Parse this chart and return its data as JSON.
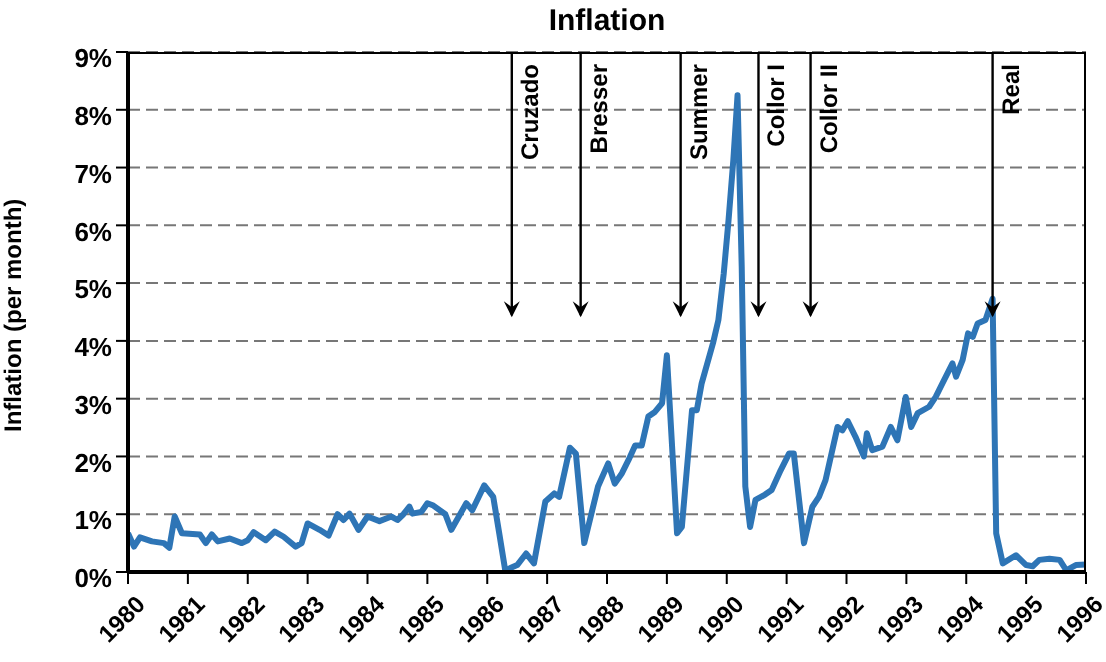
{
  "chart_data": {
    "type": "line",
    "title": "Inflation",
    "ylabel": "Inflation (per month)",
    "xlim": [
      1980,
      1996
    ],
    "xticks": [
      1980,
      1981,
      1982,
      1983,
      1984,
      1985,
      1986,
      1987,
      1988,
      1989,
      1990,
      1991,
      1992,
      1993,
      1994,
      1995,
      1996
    ],
    "ylim": [
      0,
      9
    ],
    "yticks": [
      {
        "value": 0,
        "label": "0%"
      },
      {
        "value": 1,
        "label": "1%"
      },
      {
        "value": 2,
        "label": "2%"
      },
      {
        "value": 3,
        "label": "3%"
      },
      {
        "value": 4,
        "label": "4%"
      },
      {
        "value": 5,
        "label": "5%"
      },
      {
        "value": 6,
        "label": "6%"
      },
      {
        "value": 7,
        "label": "7%"
      },
      {
        "value": 8,
        "label": "8%"
      },
      {
        "value": 9,
        "label": "9%"
      }
    ],
    "grid": "y",
    "marker": "none",
    "line_style": "solid",
    "series": [
      {
        "color": "#2e75b6",
        "x": [
          1980.0,
          1980.1,
          1980.2,
          1980.4,
          1980.6,
          1980.69,
          1980.78,
          1980.9,
          1981.2,
          1981.3,
          1981.4,
          1981.5,
          1981.7,
          1981.9,
          1982.0,
          1982.1,
          1982.3,
          1982.45,
          1982.6,
          1982.8,
          1982.9,
          1983.0,
          1983.2,
          1983.35,
          1983.5,
          1983.6,
          1983.7,
          1983.85,
          1984.0,
          1984.2,
          1984.4,
          1984.5,
          1984.6,
          1984.7,
          1984.75,
          1984.9,
          1985.0,
          1985.1,
          1985.3,
          1985.4,
          1985.65,
          1985.75,
          1985.95,
          1986.1,
          1986.2,
          1986.3,
          1986.5,
          1986.65,
          1986.78,
          1986.97,
          1987.12,
          1987.2,
          1987.38,
          1987.48,
          1987.62,
          1987.85,
          1988.02,
          1988.13,
          1988.25,
          1988.36,
          1988.47,
          1988.58,
          1988.69,
          1988.8,
          1988.92,
          1989.0,
          1989.17,
          1989.25,
          1989.42,
          1989.5,
          1989.58,
          1989.77,
          1989.86,
          1989.95,
          1990.03,
          1990.11,
          1990.18,
          1990.25,
          1990.31,
          1990.39,
          1990.48,
          1990.64,
          1990.75,
          1990.9,
          1991.04,
          1991.12,
          1991.29,
          1991.43,
          1991.54,
          1991.65,
          1991.85,
          1991.93,
          1992.02,
          1992.15,
          1992.29,
          1992.34,
          1992.43,
          1992.6,
          1992.74,
          1992.85,
          1992.99,
          1993.08,
          1993.19,
          1993.38,
          1993.49,
          1993.6,
          1993.77,
          1993.83,
          1993.94,
          1994.03,
          1994.11,
          1994.19,
          1994.32,
          1994.44,
          1994.5,
          1994.61,
          1994.83,
          1995.0,
          1995.11,
          1995.22,
          1995.39,
          1995.56,
          1995.67,
          1995.83,
          1996.0
        ],
        "values": [
          0.67,
          0.44,
          0.6,
          0.53,
          0.5,
          0.42,
          0.96,
          0.67,
          0.65,
          0.5,
          0.65,
          0.53,
          0.58,
          0.5,
          0.55,
          0.69,
          0.55,
          0.7,
          0.61,
          0.44,
          0.5,
          0.84,
          0.73,
          0.63,
          1.0,
          0.9,
          1.01,
          0.73,
          0.96,
          0.88,
          0.96,
          0.9,
          1.0,
          1.13,
          1.01,
          1.04,
          1.19,
          1.15,
          1.0,
          0.73,
          1.19,
          1.07,
          1.5,
          1.3,
          0.67,
          0.03,
          0.12,
          0.32,
          0.15,
          1.22,
          1.36,
          1.3,
          2.15,
          2.05,
          0.5,
          1.48,
          1.88,
          1.53,
          1.71,
          1.94,
          2.19,
          2.19,
          2.69,
          2.77,
          2.92,
          3.75,
          0.67,
          0.78,
          2.8,
          2.8,
          3.26,
          3.96,
          4.36,
          5.17,
          6.09,
          7.13,
          8.25,
          5.28,
          1.48,
          0.78,
          1.25,
          1.34,
          1.42,
          1.76,
          2.05,
          2.05,
          0.5,
          1.13,
          1.3,
          1.59,
          2.51,
          2.45,
          2.61,
          2.34,
          2.0,
          2.4,
          2.11,
          2.17,
          2.51,
          2.28,
          3.03,
          2.51,
          2.75,
          2.86,
          3.03,
          3.26,
          3.61,
          3.38,
          3.67,
          4.13,
          4.07,
          4.3,
          4.36,
          4.73,
          0.67,
          0.15,
          0.29,
          0.12,
          0.1,
          0.21,
          0.23,
          0.21,
          0.03,
          0.12,
          0.13
        ]
      }
    ],
    "ref_lines": [
      {
        "axis": "x",
        "value": 1986.41,
        "label": "Cruzado"
      },
      {
        "axis": "x",
        "value": 1987.56,
        "label": "Bresser"
      },
      {
        "axis": "x",
        "value": 1989.23,
        "label": "Summer"
      },
      {
        "axis": "x",
        "value": 1990.53,
        "label": "Collor I"
      },
      {
        "axis": "x",
        "value": 1991.4,
        "label": "Collor II"
      },
      {
        "axis": "x",
        "value": 1994.44,
        "label": "Real"
      }
    ]
  }
}
